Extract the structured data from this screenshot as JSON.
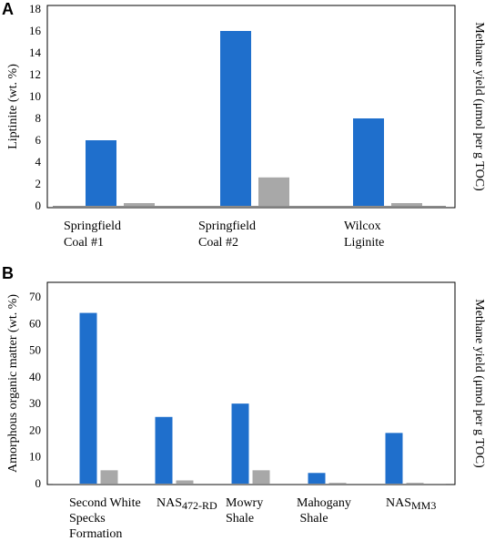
{
  "colors": {
    "liptinite_bar": "#1f6fcc",
    "methane_bar": "#a8a8a8",
    "axis": "#8c8c8c",
    "frame": "#000000"
  },
  "chart_data": [
    {
      "type": "bar",
      "panel_label": "A",
      "ylabel": "Liptinite (wt. %)",
      "y2label": "Methane yield (μmol per g TOC)",
      "ylim": [
        0,
        18
      ],
      "yticks": [
        0,
        2,
        4,
        6,
        8,
        10,
        12,
        14,
        16,
        18
      ],
      "categories": [
        {
          "lines": [
            "Springfield",
            "Coal #1"
          ]
        },
        {
          "lines": [
            "Springfield",
            "Coal #2"
          ]
        },
        {
          "lines": [
            "Wilcox",
            "Liginite"
          ]
        }
      ],
      "series": [
        {
          "values": [
            6,
            16,
            8
          ],
          "color": "#1f6fcc"
        },
        {
          "values": [
            0.25,
            2.6,
            0.25
          ],
          "color": "#a8a8a8"
        }
      ],
      "grid": false,
      "legend": "none"
    },
    {
      "type": "bar",
      "panel_label": "B",
      "ylabel": "Amorphous organic matter (wt. %)",
      "y2label": "Methane yield (μmol per g TOC)",
      "ylim": [
        0,
        70
      ],
      "yticks": [
        0,
        10,
        20,
        30,
        40,
        50,
        60,
        70
      ],
      "categories": [
        {
          "lines": [
            "Second White",
            "Specks",
            "Formation"
          ]
        },
        {
          "base": "NAS",
          "sub": "472-RD"
        },
        {
          "lines": [
            "Mowry",
            "Shale"
          ]
        },
        {
          "lines": [
            "Mahogany",
            " Shale"
          ]
        },
        {
          "base": "NAS",
          "sub": "MM3"
        }
      ],
      "series": [
        {
          "values": [
            64,
            25,
            30,
            4,
            19
          ],
          "color": "#1f6fcc"
        },
        {
          "values": [
            5,
            1.2,
            5,
            0.3,
            0.3
          ],
          "color": "#a8a8a8"
        }
      ],
      "grid": false,
      "legend": "none"
    }
  ]
}
